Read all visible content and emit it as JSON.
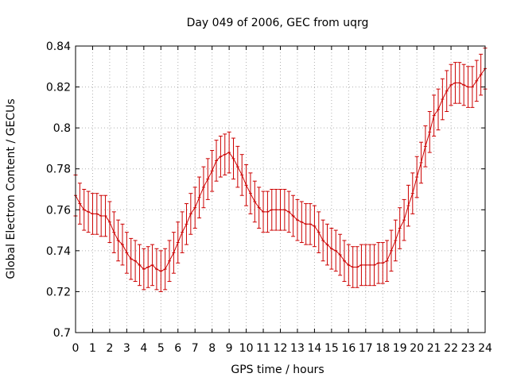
{
  "chart_data": {
    "type": "line",
    "title": "Day 049 of 2006, GEC from uqrg",
    "xlabel": "GPS time / hours",
    "ylabel": "Global Electron Content / GECUs",
    "xlim": [
      0,
      24
    ],
    "ylim": [
      0.7,
      0.84
    ],
    "xticks": [
      0,
      1,
      2,
      3,
      4,
      5,
      6,
      7,
      8,
      9,
      10,
      11,
      12,
      13,
      14,
      15,
      16,
      17,
      18,
      19,
      20,
      21,
      22,
      23,
      24
    ],
    "yticks": [
      "0.7",
      "0.72",
      "0.74",
      "0.76",
      "0.78",
      "0.8",
      "0.82",
      "0.84"
    ],
    "grid": true,
    "series": [
      {
        "name": "GEC",
        "color": "#cc0000",
        "error": 0.01,
        "x": [
          0.0,
          0.25,
          0.5,
          0.75,
          1.0,
          1.25,
          1.5,
          1.75,
          2.0,
          2.25,
          2.5,
          2.75,
          3.0,
          3.25,
          3.5,
          3.75,
          4.0,
          4.25,
          4.5,
          4.75,
          5.0,
          5.25,
          5.5,
          5.75,
          6.0,
          6.25,
          6.5,
          6.75,
          7.0,
          7.25,
          7.5,
          7.75,
          8.0,
          8.25,
          8.5,
          8.75,
          9.0,
          9.25,
          9.5,
          9.75,
          10.0,
          10.25,
          10.5,
          10.75,
          11.0,
          11.25,
          11.5,
          11.75,
          12.0,
          12.25,
          12.5,
          12.75,
          13.0,
          13.25,
          13.5,
          13.75,
          14.0,
          14.25,
          14.5,
          14.75,
          15.0,
          15.25,
          15.5,
          15.75,
          16.0,
          16.25,
          16.5,
          16.75,
          17.0,
          17.25,
          17.5,
          17.75,
          18.0,
          18.25,
          18.5,
          18.75,
          19.0,
          19.25,
          19.5,
          19.75,
          20.0,
          20.25,
          20.5,
          20.75,
          21.0,
          21.25,
          21.5,
          21.75,
          22.0,
          22.25,
          22.5,
          22.75,
          23.0,
          23.25,
          23.5,
          23.75,
          24.0
        ],
        "y": [
          0.767,
          0.763,
          0.76,
          0.759,
          0.758,
          0.758,
          0.757,
          0.757,
          0.754,
          0.749,
          0.745,
          0.743,
          0.739,
          0.736,
          0.735,
          0.733,
          0.731,
          0.732,
          0.733,
          0.731,
          0.73,
          0.731,
          0.735,
          0.739,
          0.744,
          0.749,
          0.753,
          0.758,
          0.761,
          0.766,
          0.771,
          0.775,
          0.779,
          0.784,
          0.786,
          0.787,
          0.788,
          0.785,
          0.781,
          0.777,
          0.772,
          0.768,
          0.764,
          0.761,
          0.759,
          0.759,
          0.76,
          0.76,
          0.76,
          0.76,
          0.759,
          0.757,
          0.755,
          0.754,
          0.753,
          0.753,
          0.752,
          0.749,
          0.745,
          0.743,
          0.741,
          0.74,
          0.738,
          0.735,
          0.733,
          0.732,
          0.732,
          0.733,
          0.733,
          0.733,
          0.733,
          0.734,
          0.734,
          0.735,
          0.74,
          0.745,
          0.751,
          0.755,
          0.762,
          0.768,
          0.776,
          0.783,
          0.791,
          0.798,
          0.806,
          0.809,
          0.814,
          0.818,
          0.821,
          0.822,
          0.822,
          0.821,
          0.82,
          0.82,
          0.823,
          0.826,
          0.829
        ]
      }
    ]
  }
}
